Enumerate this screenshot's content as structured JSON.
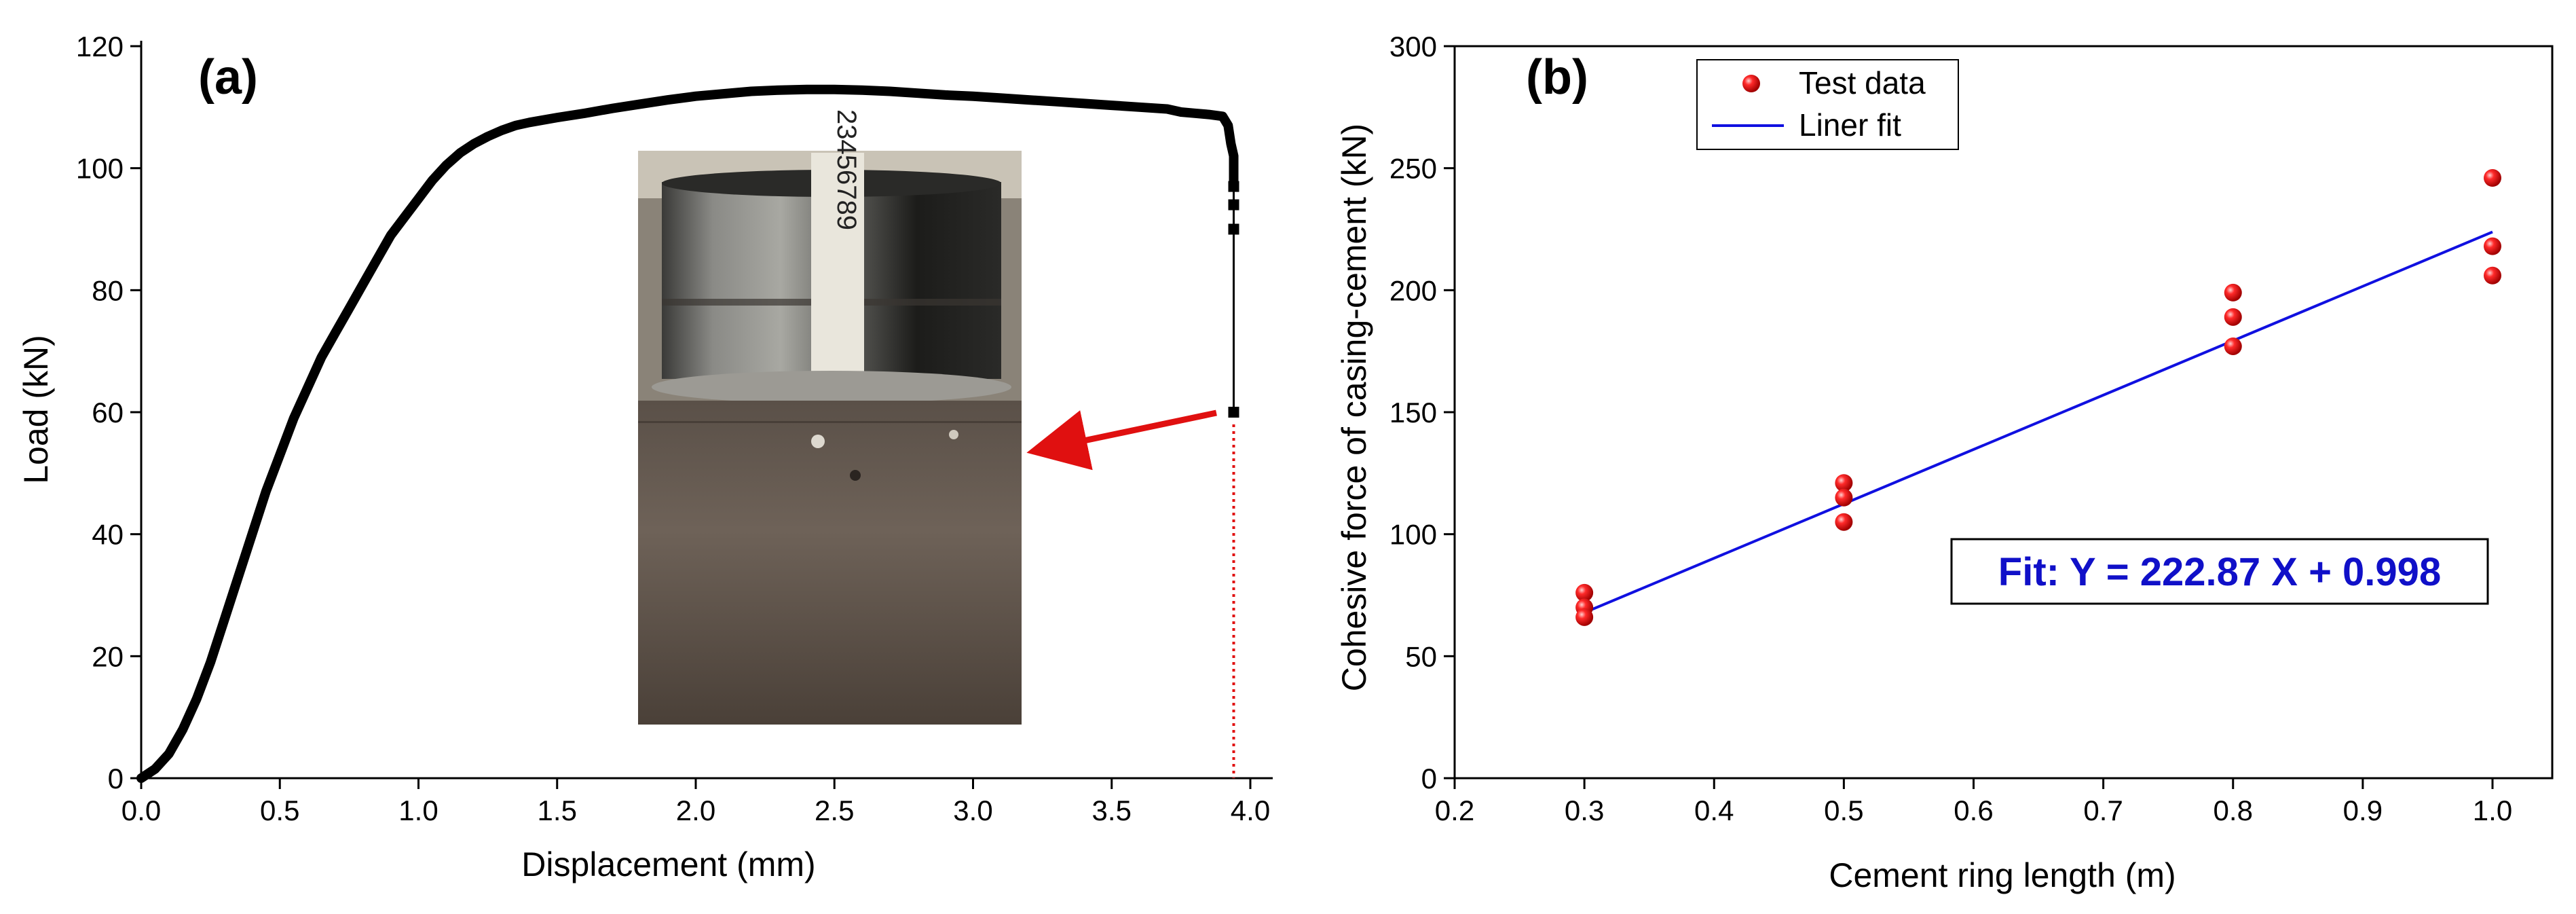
{
  "chart_data": [
    {
      "panel": "(a)",
      "type": "line",
      "xlabel": "Displacement (mm)",
      "ylabel": "Load (kN)",
      "xlim": [
        0,
        4.0
      ],
      "ylim": [
        0,
        120
      ],
      "x_ticks": [
        "0.0",
        "0.5",
        "1.0",
        "1.5",
        "2.0",
        "2.5",
        "3.0",
        "3.5",
        "4.0"
      ],
      "y_ticks": [
        "0",
        "20",
        "40",
        "60",
        "80",
        "100",
        "120"
      ],
      "series": [
        {
          "color": "#000000",
          "x": [
            0,
            0.05,
            0.1,
            0.15,
            0.2,
            0.25,
            0.3,
            0.35,
            0.4,
            0.45,
            0.5,
            0.55,
            0.6,
            0.65,
            0.7,
            0.75,
            0.8,
            0.85,
            0.9,
            0.95,
            1.0,
            1.05,
            1.1,
            1.15,
            1.2,
            1.25,
            1.3,
            1.35,
            1.4,
            1.5,
            1.6,
            1.7,
            1.8,
            1.9,
            2.0,
            2.1,
            2.2,
            2.3,
            2.4,
            2.5,
            2.6,
            2.7,
            2.8,
            2.9,
            3.0,
            3.1,
            3.2,
            3.3,
            3.4,
            3.5,
            3.6,
            3.7,
            3.75,
            3.8,
            3.85,
            3.9,
            3.92,
            3.93,
            3.94,
            3.94
          ],
          "y": [
            0,
            1.5,
            4,
            8,
            13,
            19,
            26,
            33,
            40,
            47,
            53,
            59,
            64,
            69,
            73,
            77,
            81,
            85,
            89,
            92,
            95,
            98,
            100.5,
            102.5,
            104,
            105.2,
            106.2,
            107,
            107.5,
            108.3,
            109,
            109.8,
            110.5,
            111.2,
            111.8,
            112.2,
            112.6,
            112.8,
            112.9,
            112.9,
            112.8,
            112.6,
            112.3,
            112.0,
            111.8,
            111.5,
            111.2,
            110.9,
            110.6,
            110.3,
            110.0,
            109.7,
            109.2,
            109.0,
            108.8,
            108.5,
            107,
            104,
            102,
            98
          ]
        }
      ],
      "step_points": {
        "x": 3.94,
        "y": [
          97,
          94,
          90,
          60
        ]
      },
      "dotted_marker_x": 3.94
    },
    {
      "panel": "(b)",
      "type": "scatter",
      "xlabel": "Cement ring length (m)",
      "ylabel": "Cohesive force of casing-cement (kN)",
      "xlim": [
        0.2,
        1.05
      ],
      "ylim": [
        0,
        300
      ],
      "x_ticks": [
        "0.2",
        "0.3",
        "0.4",
        "0.5",
        "0.6",
        "0.7",
        "0.8",
        "0.9",
        "1.0"
      ],
      "y_ticks": [
        "0",
        "50",
        "100",
        "150",
        "200",
        "250",
        "300"
      ],
      "legend": [
        "Test data",
        "Liner fit"
      ],
      "legend_position": "top-left",
      "series": [
        {
          "name": "Test data",
          "color": "#e81010",
          "x": [
            0.3,
            0.3,
            0.3,
            0.5,
            0.5,
            0.5,
            0.8,
            0.8,
            0.8,
            1.0,
            1.0,
            1.0
          ],
          "y": [
            76,
            70,
            66,
            121,
            115,
            105,
            199,
            189,
            177,
            246,
            218,
            206
          ]
        },
        {
          "name": "Liner fit",
          "color": "#1010e0",
          "x": [
            0.3,
            1.0
          ],
          "y": [
            67.86,
            223.87
          ]
        }
      ],
      "annotation": "Fit: Y = 222.87 X + 0.998"
    }
  ]
}
